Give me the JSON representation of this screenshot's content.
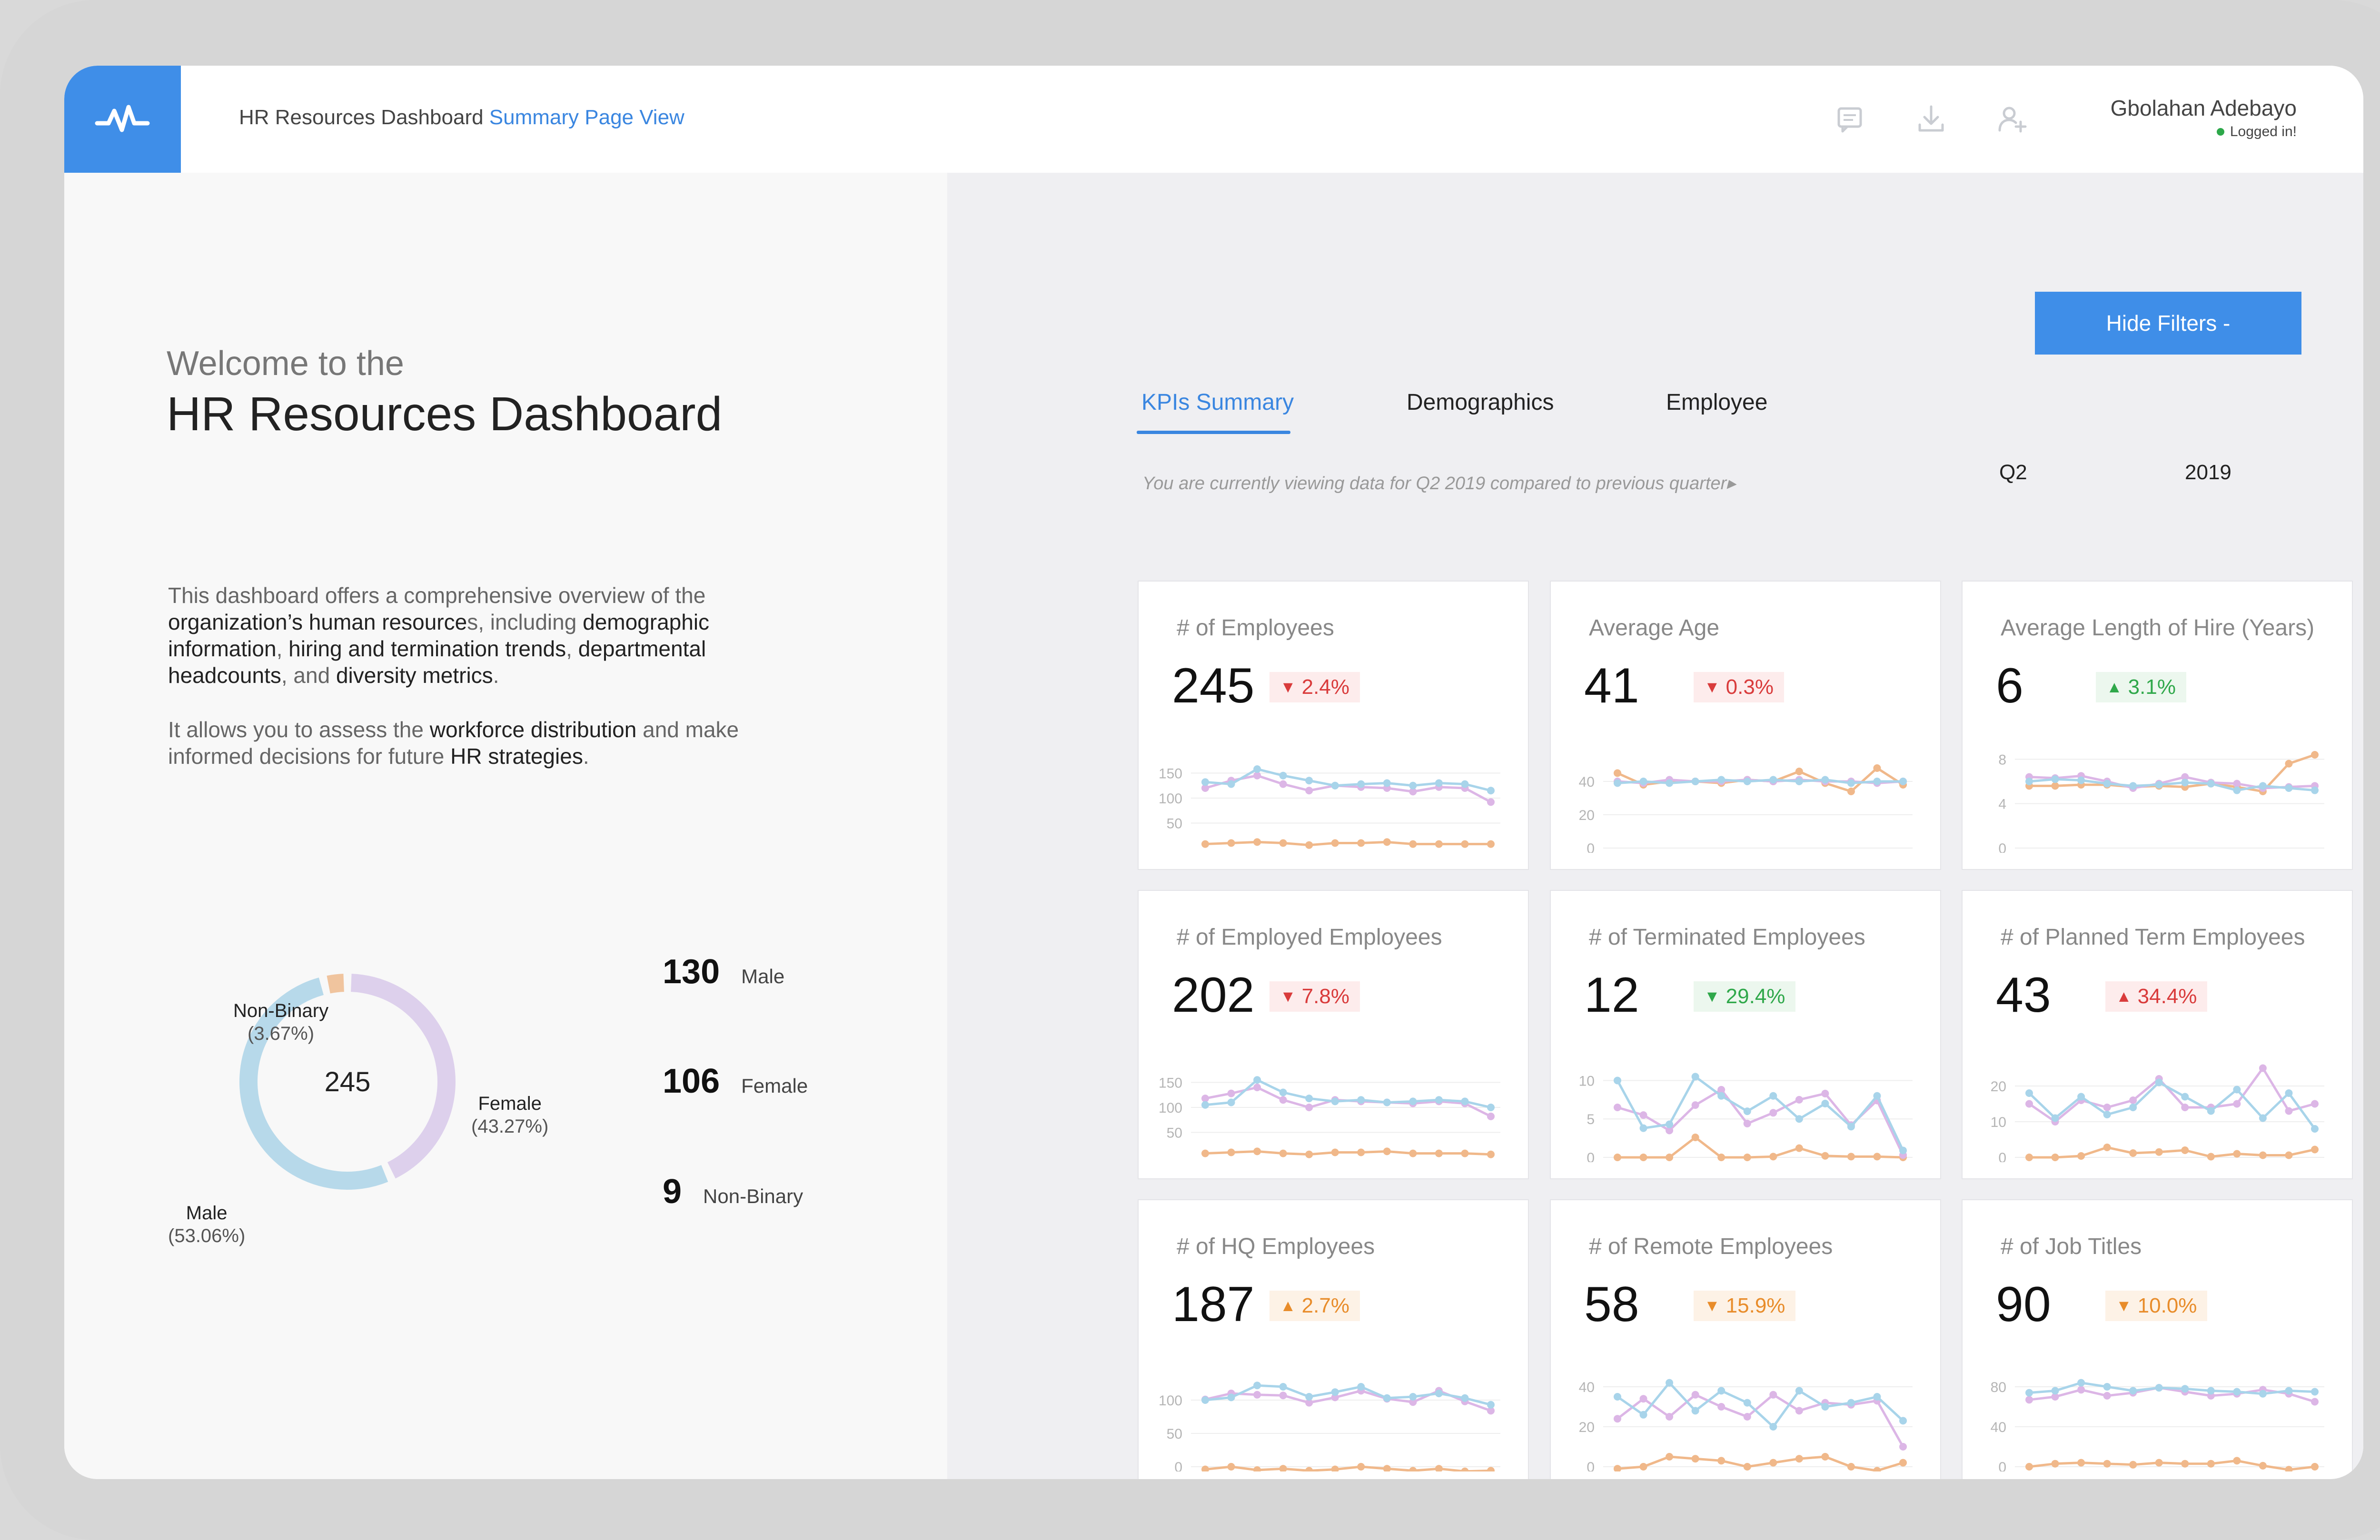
{
  "header": {
    "title": "HR Resources Dashboard",
    "subtitle": "Summary Page View",
    "icons": [
      "comment-icon",
      "download-icon",
      "add-user-icon"
    ],
    "user_name": "Gbolahan Adebayo",
    "user_status": "Logged in!"
  },
  "intro": {
    "welcome": "Welcome to the",
    "title": "HR Resources Dashboard",
    "p1": [
      {
        "t": "This dashboard offers a comprehensive overview of the ",
        "dark": false
      },
      {
        "t": "organization’s human resource",
        "dark": true
      },
      {
        "t": "s, including ",
        "dark": false
      },
      {
        "t": "demographic information",
        "dark": true
      },
      {
        "t": ", ",
        "dark": false
      },
      {
        "t": "hiring and termination trends",
        "dark": true
      },
      {
        "t": ", ",
        "dark": false
      },
      {
        "t": "departmental headcounts",
        "dark": true
      },
      {
        "t": ", and ",
        "dark": false
      },
      {
        "t": "diversity metrics",
        "dark": true
      },
      {
        "t": ".",
        "dark": false
      }
    ],
    "p2": [
      {
        "t": "It allows you to assess the ",
        "dark": false
      },
      {
        "t": "workforce distribution",
        "dark": true
      },
      {
        "t": " and make informed decisions for future ",
        "dark": false
      },
      {
        "t": "HR strategies",
        "dark": true
      },
      {
        "t": ".",
        "dark": false
      }
    ]
  },
  "gender": {
    "total": "245",
    "segments": [
      {
        "name": "Male",
        "pct_label": "(53.06%)",
        "share": 0.5306,
        "color": "#b7d9ea"
      },
      {
        "name": "Female",
        "pct_label": "(43.27%)",
        "share": 0.4327,
        "color": "#ddd0ec"
      },
      {
        "name": "Non-Binary",
        "pct_label": "(3.67%)",
        "share": 0.0367,
        "color": "#f0c49e"
      }
    ],
    "stats": [
      {
        "num": "130",
        "label": "Male"
      },
      {
        "num": "106",
        "label": "Female"
      },
      {
        "num": "9",
        "label": "Non-Binary"
      }
    ]
  },
  "filters": {
    "hide_label": "Hide Filters -",
    "note": "You are currently viewing data for Q2 2019 compared to previous quarter▸",
    "quarter": "Q2",
    "year": "2019"
  },
  "tabs": [
    "KPIs Summary",
    "Demographics",
    "Employee"
  ],
  "colors": {
    "accent": "#3f8ee8",
    "blue": "#a8d4ea",
    "pink": "#dcb6e6",
    "orange": "#f0b88a"
  },
  "kpis": [
    {
      "title": "# of Employees",
      "value": "245",
      "delta": "2.4%",
      "dir": "down",
      "tone": "red",
      "chart": {
        "ylim": [
          0,
          200
        ],
        "ticks": [
          "150",
          "100",
          "50"
        ],
        "tick_vals": [
          150,
          100,
          50
        ],
        "blue": [
          132,
          128,
          158,
          145,
          135,
          125,
          128,
          130,
          125,
          130,
          128,
          115
        ],
        "pink": [
          120,
          135,
          145,
          128,
          115,
          125,
          122,
          120,
          113,
          122,
          120,
          92
        ],
        "orange": [
          8,
          10,
          12,
          10,
          6,
          10,
          10,
          12,
          8,
          8,
          8,
          8
        ]
      }
    },
    {
      "title": "Average Age",
      "value": "41",
      "delta": "0.3%",
      "dir": "down",
      "tone": "red",
      "chart": {
        "ylim": [
          0,
          60
        ],
        "ticks": [
          "40",
          "20",
          "0"
        ],
        "tick_vals": [
          40,
          20,
          0
        ],
        "blue": [
          39,
          40,
          39,
          40,
          41,
          40,
          41,
          40,
          41,
          39,
          40,
          40
        ],
        "pink": [
          40,
          39,
          41,
          40,
          40,
          41,
          40,
          41,
          40,
          40,
          39,
          40
        ],
        "orange": [
          45,
          38,
          40,
          40,
          39,
          41,
          40,
          46,
          39,
          34,
          48,
          38
        ]
      }
    },
    {
      "title": "Average Length of Hire (Years)",
      "value": "6",
      "delta": "3.1%",
      "dir": "up",
      "tone": "green",
      "chart": {
        "ylim": [
          0,
          9
        ],
        "ticks": [
          "8",
          "4",
          "0"
        ],
        "tick_vals": [
          8,
          4,
          0
        ],
        "blue": [
          6.0,
          6.2,
          6.1,
          5.8,
          5.6,
          5.7,
          5.9,
          5.8,
          5.2,
          5.6,
          5.4,
          5.2
        ],
        "pink": [
          6.4,
          6.3,
          6.5,
          6.0,
          5.4,
          5.8,
          6.4,
          5.9,
          5.8,
          5.4,
          5.5,
          5.6
        ],
        "orange": [
          5.6,
          5.6,
          5.7,
          5.7,
          5.5,
          5.6,
          5.5,
          5.8,
          5.5,
          5.1,
          7.6,
          8.4
        ]
      }
    },
    {
      "title": "# of Employed Employees",
      "value": "202",
      "delta": "7.8%",
      "dir": "down",
      "tone": "red",
      "chart": {
        "ylim": [
          0,
          200
        ],
        "ticks": [
          "150",
          "100",
          "50"
        ],
        "tick_vals": [
          150,
          100,
          50
        ],
        "blue": [
          105,
          110,
          155,
          130,
          118,
          112,
          115,
          110,
          112,
          115,
          112,
          100
        ],
        "pink": [
          118,
          128,
          140,
          115,
          100,
          115,
          112,
          110,
          108,
          112,
          108,
          82
        ],
        "orange": [
          8,
          10,
          12,
          8,
          6,
          10,
          10,
          12,
          8,
          8,
          8,
          6
        ]
      }
    },
    {
      "title": "# of Terminated Employees",
      "value": "12",
      "delta": "29.4%",
      "dir": "down",
      "tone": "green",
      "chart": {
        "ylim": [
          0,
          13
        ],
        "ticks": [
          "10",
          "5",
          "0"
        ],
        "tick_vals": [
          10,
          5,
          0
        ],
        "blue": [
          10,
          3.8,
          4.3,
          10.5,
          8,
          6,
          8,
          5,
          7,
          4,
          8,
          0.9
        ],
        "pink": [
          6.5,
          5.5,
          3.5,
          6.8,
          8.8,
          4.4,
          5.8,
          7.5,
          8.3,
          4.2,
          7.4,
          0.3
        ],
        "orange": [
          0,
          0,
          0,
          2.6,
          0,
          0,
          0.1,
          1.2,
          0.2,
          0.1,
          0.1,
          0
        ]
      }
    },
    {
      "title": "# of Planned Term Employees",
      "value": "43",
      "delta": "34.4%",
      "dir": "up",
      "tone": "red",
      "chart": {
        "ylim": [
          0,
          28
        ],
        "ticks": [
          "20",
          "10",
          "0"
        ],
        "tick_vals": [
          20,
          10,
          0
        ],
        "blue": [
          18,
          11,
          17,
          12,
          14,
          21,
          17,
          13,
          19,
          11,
          18,
          8
        ],
        "pink": [
          15,
          10,
          16,
          14,
          16,
          22,
          14,
          14,
          15,
          25,
          13,
          15
        ],
        "orange": [
          0,
          0,
          0.4,
          2.8,
          1.2,
          1.5,
          2,
          0.2,
          1,
          0.6,
          0.6,
          2.2
        ]
      }
    },
    {
      "title": "# of HQ Employees",
      "value": "187",
      "delta": "2.7%",
      "dir": "up",
      "tone": "orange",
      "chart": {
        "ylim": [
          0,
          150
        ],
        "ticks": [
          "100",
          "50",
          "0"
        ],
        "tick_vals": [
          100,
          50,
          0
        ],
        "blue": [
          100,
          104,
          122,
          120,
          105,
          112,
          120,
          103,
          105,
          110,
          103,
          93
        ],
        "pink": [
          101,
          110,
          108,
          107,
          96,
          104,
          114,
          102,
          97,
          114,
          98,
          84
        ],
        "orange": [
          -4,
          0,
          -5,
          -3,
          -6,
          -4,
          0,
          -3,
          -6,
          -3,
          -7,
          -6
        ]
      }
    },
    {
      "title": "# of Remote Employees",
      "value": "58",
      "delta": "15.9%",
      "dir": "down",
      "tone": "orange",
      "chart": {
        "ylim": [
          0,
          50
        ],
        "ticks": [
          "40",
          "20",
          "0"
        ],
        "tick_vals": [
          40,
          20,
          0
        ],
        "blue": [
          35,
          26,
          42,
          28,
          38,
          32,
          20,
          38,
          30,
          32,
          35,
          23
        ],
        "pink": [
          24,
          34,
          25,
          36,
          30,
          25,
          36,
          28,
          32,
          31,
          33,
          10
        ],
        "orange": [
          -1,
          0,
          5,
          4,
          3,
          0,
          2,
          4,
          5,
          0,
          -2,
          2
        ]
      }
    },
    {
      "title": "# of Job Titles",
      "value": "90",
      "delta": "10.0%",
      "dir": "down",
      "tone": "orange",
      "chart": {
        "ylim": [
          0,
          100
        ],
        "ticks": [
          "80",
          "40",
          "0"
        ],
        "tick_vals": [
          80,
          40,
          0
        ],
        "blue": [
          74,
          76,
          84,
          80,
          76,
          79,
          78,
          76,
          75,
          73,
          76,
          75
        ],
        "pink": [
          67,
          70,
          77,
          71,
          74,
          79,
          75,
          71,
          73,
          77,
          73,
          65
        ],
        "orange": [
          0,
          3,
          4,
          3,
          2,
          4,
          3,
          3,
          6,
          1,
          -3,
          0
        ]
      }
    }
  ]
}
